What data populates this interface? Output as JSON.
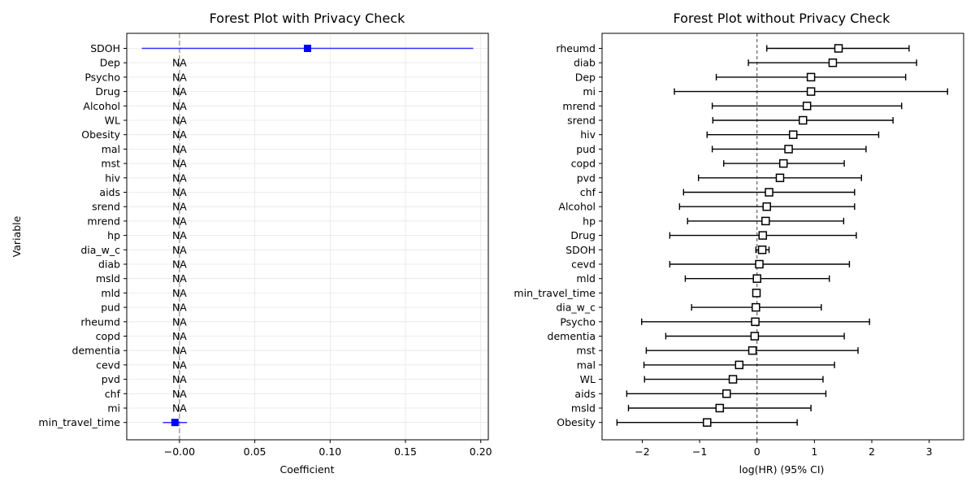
{
  "chart_data": [
    {
      "type": "forest",
      "title": "Forest Plot with Privacy Check",
      "xlabel": "Coefficient",
      "ylabel": "Variable",
      "xlim": [
        -0.035,
        0.205
      ],
      "xticks": [
        "−0.00",
        "0.05",
        "0.10",
        "0.15",
        "0.20"
      ],
      "xtick_values": [
        0,
        0.05,
        0.1,
        0.15,
        0.2
      ],
      "grid": true,
      "reference_line": 0,
      "na_label": "NA",
      "color": "#0000ff",
      "rows": [
        {
          "label": "SDOH",
          "estimate": 0.085,
          "lower": -0.025,
          "upper": 0.195
        },
        {
          "label": "Dep",
          "na": true
        },
        {
          "label": "Psycho",
          "na": true
        },
        {
          "label": "Drug",
          "na": true
        },
        {
          "label": "Alcohol",
          "na": true
        },
        {
          "label": "WL",
          "na": true
        },
        {
          "label": "Obesity",
          "na": true
        },
        {
          "label": "mal",
          "na": true
        },
        {
          "label": "mst",
          "na": true
        },
        {
          "label": "hiv",
          "na": true
        },
        {
          "label": "aids",
          "na": true
        },
        {
          "label": "srend",
          "na": true
        },
        {
          "label": "mrend",
          "na": true
        },
        {
          "label": "hp",
          "na": true
        },
        {
          "label": "dia_w_c",
          "na": true
        },
        {
          "label": "diab",
          "na": true
        },
        {
          "label": "msld",
          "na": true
        },
        {
          "label": "mld",
          "na": true
        },
        {
          "label": "pud",
          "na": true
        },
        {
          "label": "rheumd",
          "na": true
        },
        {
          "label": "copd",
          "na": true
        },
        {
          "label": "dementia",
          "na": true
        },
        {
          "label": "cevd",
          "na": true
        },
        {
          "label": "pvd",
          "na": true
        },
        {
          "label": "chf",
          "na": true
        },
        {
          "label": "mi",
          "na": true
        },
        {
          "label": "min_travel_time",
          "estimate": -0.003,
          "lower": -0.011,
          "upper": 0.005
        }
      ]
    },
    {
      "type": "forest",
      "title": "Forest Plot without Privacy Check",
      "xlabel": "log(HR) (95% CI)",
      "ylabel": "",
      "xlim": [
        -2.7,
        3.6
      ],
      "xticks": [
        "−2",
        "−1",
        "0",
        "1",
        "2",
        "3"
      ],
      "xtick_values": [
        -2,
        -1,
        0,
        1,
        2,
        3
      ],
      "grid": false,
      "reference_line": 0,
      "color": "#000000",
      "rows": [
        {
          "label": "rheumd",
          "estimate": 1.42,
          "lower": 0.17,
          "upper": 2.65
        },
        {
          "label": "diab",
          "estimate": 1.32,
          "lower": -0.15,
          "upper": 2.78
        },
        {
          "label": "Dep",
          "estimate": 0.94,
          "lower": -0.71,
          "upper": 2.59
        },
        {
          "label": "mi",
          "estimate": 0.94,
          "lower": -1.44,
          "upper": 3.32
        },
        {
          "label": "mrend",
          "estimate": 0.87,
          "lower": -0.78,
          "upper": 2.52
        },
        {
          "label": "srend",
          "estimate": 0.8,
          "lower": -0.77,
          "upper": 2.37
        },
        {
          "label": "hiv",
          "estimate": 0.63,
          "lower": -0.87,
          "upper": 2.12
        },
        {
          "label": "pud",
          "estimate": 0.55,
          "lower": -0.78,
          "upper": 1.9
        },
        {
          "label": "copd",
          "estimate": 0.46,
          "lower": -0.58,
          "upper": 1.52
        },
        {
          "label": "pvd",
          "estimate": 0.4,
          "lower": -1.02,
          "upper": 1.82
        },
        {
          "label": "chf",
          "estimate": 0.21,
          "lower": -1.28,
          "upper": 1.7
        },
        {
          "label": "Alcohol",
          "estimate": 0.17,
          "lower": -1.35,
          "upper": 1.7
        },
        {
          "label": "hp",
          "estimate": 0.15,
          "lower": -1.21,
          "upper": 1.51
        },
        {
          "label": "Drug",
          "estimate": 0.1,
          "lower": -1.52,
          "upper": 1.73
        },
        {
          "label": "SDOH",
          "estimate": 0.09,
          "lower": -0.02,
          "upper": 0.21
        },
        {
          "label": "cevd",
          "estimate": 0.04,
          "lower": -1.52,
          "upper": 1.61
        },
        {
          "label": "mld",
          "estimate": 0.0,
          "lower": -1.25,
          "upper": 1.26
        },
        {
          "label": "min_travel_time",
          "estimate": -0.01,
          "lower": -0.03,
          "upper": 0.01
        },
        {
          "label": "dia_w_c",
          "estimate": -0.02,
          "lower": -1.14,
          "upper": 1.12
        },
        {
          "label": "Psycho",
          "estimate": -0.03,
          "lower": -2.01,
          "upper": 1.96
        },
        {
          "label": "dementia",
          "estimate": -0.04,
          "lower": -1.59,
          "upper": 1.52
        },
        {
          "label": "mst",
          "estimate": -0.08,
          "lower": -1.93,
          "upper": 1.76
        },
        {
          "label": "mal",
          "estimate": -0.31,
          "lower": -1.97,
          "upper": 1.35
        },
        {
          "label": "WL",
          "estimate": -0.42,
          "lower": -1.96,
          "upper": 1.15
        },
        {
          "label": "aids",
          "estimate": -0.53,
          "lower": -2.27,
          "upper": 1.2
        },
        {
          "label": "msld",
          "estimate": -0.65,
          "lower": -2.24,
          "upper": 0.94
        },
        {
          "label": "Obesity",
          "estimate": -0.87,
          "lower": -2.44,
          "upper": 0.7
        }
      ]
    }
  ]
}
